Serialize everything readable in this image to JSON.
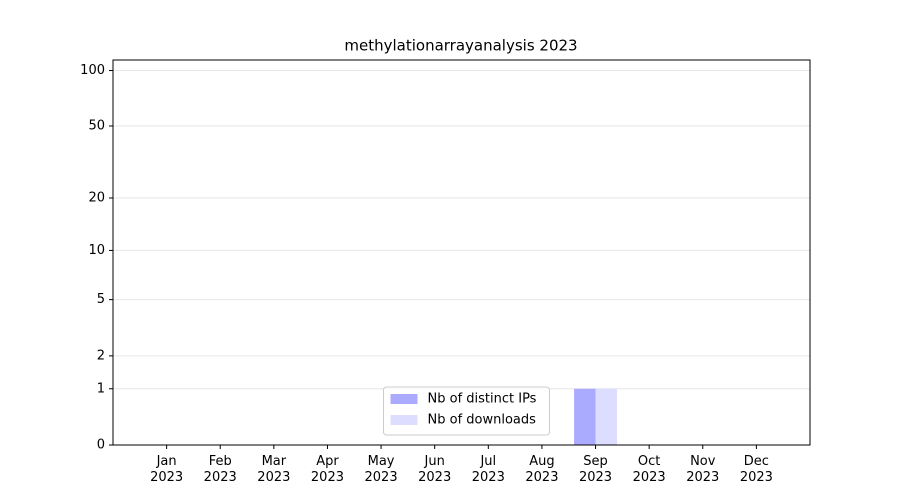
{
  "chart_data": {
    "type": "bar",
    "title": "methylationarrayanalysis 2023",
    "categories": [
      "Jan 2023",
      "Feb 2023",
      "Mar 2023",
      "Apr 2023",
      "May 2023",
      "Jun 2023",
      "Jul 2023",
      "Aug 2023",
      "Sep 2023",
      "Oct 2023",
      "Nov 2023",
      "Dec 2023"
    ],
    "series": [
      {
        "name": "Nb of distinct IPs",
        "color": "#aaaaff",
        "values": [
          0,
          0,
          0,
          0,
          0,
          0,
          0,
          0,
          1,
          0,
          0,
          0
        ]
      },
      {
        "name": "Nb of downloads",
        "color": "#ddddff",
        "values": [
          0,
          0,
          0,
          0,
          0,
          0,
          0,
          0,
          1,
          0,
          0,
          0
        ]
      }
    ],
    "yscale": "log1p",
    "ylim": [
      0,
      114
    ],
    "yticks": [
      0,
      1,
      2,
      5,
      10,
      20,
      50,
      100
    ],
    "grid": true,
    "legend": "lower center"
  }
}
